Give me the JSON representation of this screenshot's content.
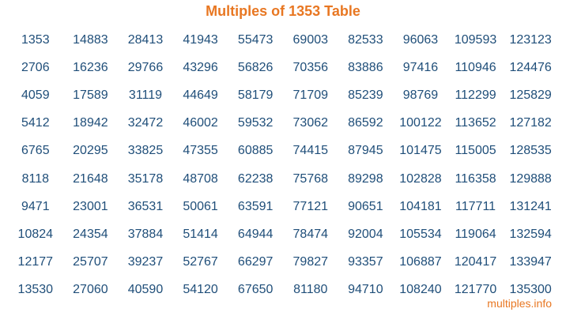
{
  "title": "Multiples of 1353 Table",
  "footer": "multiples.info",
  "colors": {
    "title": "#e87722",
    "numbers": "#1f4e79"
  },
  "rows": [
    [
      "1353",
      "14883",
      "28413",
      "41943",
      "55473",
      "69003",
      "82533",
      "96063",
      "109593",
      "123123"
    ],
    [
      "2706",
      "16236",
      "29766",
      "43296",
      "56826",
      "70356",
      "83886",
      "97416",
      "110946",
      "124476"
    ],
    [
      "4059",
      "17589",
      "31119",
      "44649",
      "58179",
      "71709",
      "85239",
      "98769",
      "112299",
      "125829"
    ],
    [
      "5412",
      "18942",
      "32472",
      "46002",
      "59532",
      "73062",
      "86592",
      "100122",
      "113652",
      "127182"
    ],
    [
      "6765",
      "20295",
      "33825",
      "47355",
      "60885",
      "74415",
      "87945",
      "101475",
      "115005",
      "128535"
    ],
    [
      "8118",
      "21648",
      "35178",
      "48708",
      "62238",
      "75768",
      "89298",
      "102828",
      "116358",
      "129888"
    ],
    [
      "9471",
      "23001",
      "36531",
      "50061",
      "63591",
      "77121",
      "90651",
      "104181",
      "117711",
      "131241"
    ],
    [
      "10824",
      "24354",
      "37884",
      "51414",
      "64944",
      "78474",
      "92004",
      "105534",
      "119064",
      "132594"
    ],
    [
      "12177",
      "25707",
      "39237",
      "52767",
      "66297",
      "79827",
      "93357",
      "106887",
      "120417",
      "133947"
    ],
    [
      "13530",
      "27060",
      "40590",
      "54120",
      "67650",
      "81180",
      "94710",
      "108240",
      "121770",
      "135300"
    ]
  ]
}
